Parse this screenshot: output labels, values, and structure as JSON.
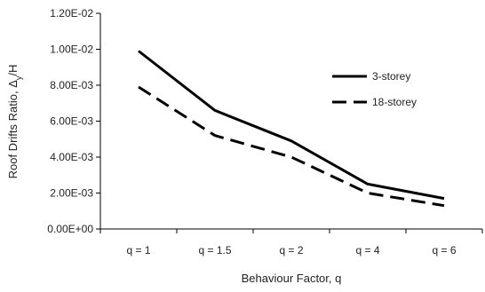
{
  "chart_data": {
    "type": "line",
    "categories": [
      "q = 1",
      "q = 1.5",
      "q = 2",
      "q = 4",
      "q = 6"
    ],
    "series": [
      {
        "name": "3-storey",
        "values": [
          0.0099,
          0.0066,
          0.0049,
          0.0025,
          0.0017
        ],
        "color": "#000000",
        "style": "solid"
      },
      {
        "name": "18-storey",
        "values": [
          0.0079,
          0.0052,
          0.004,
          0.002,
          0.0013
        ],
        "color": "#000000",
        "style": "dashed"
      }
    ],
    "xlabel": "Behaviour Factor, q",
    "ylabel": "Roof Drifts Ratio, Δy/H",
    "ylim": [
      0,
      0.012
    ],
    "yticks": [
      "0.00E+00",
      "2.00E-03",
      "4.00E-03",
      "6.00E-03",
      "8.00E-03",
      "1.00E-02",
      "1.20E-02"
    ],
    "grid": false,
    "legend_position": "right"
  }
}
